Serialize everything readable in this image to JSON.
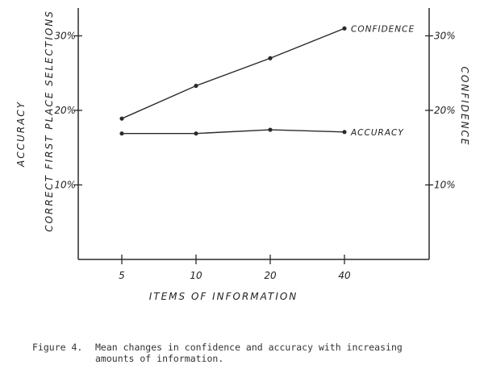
{
  "chart_data": {
    "type": "line",
    "x_categories": [
      "5",
      "10",
      "20",
      "40"
    ],
    "xlabel": "ITEMS OF INFORMATION",
    "ylabel_left_outer": "ACCURACY",
    "ylabel_left_inner": "CORRECT FIRST PLACE SELECTIONS",
    "ylabel_right": "CONFIDENCE",
    "y_ticks_left": [
      "30%",
      "20%",
      "10%"
    ],
    "y_ticks_right": [
      "30%",
      "20%",
      "10%"
    ],
    "ylim": [
      0,
      35
    ],
    "grid": false,
    "series": [
      {
        "name": "CONFIDENCE",
        "values": [
          18.9,
          23.3,
          27.0,
          31.0
        ]
      },
      {
        "name": "ACCURACY",
        "values": [
          16.9,
          16.9,
          17.4,
          17.1
        ]
      }
    ],
    "colors": {
      "line": "#2a2a2a",
      "text": "#222222"
    }
  },
  "caption": {
    "number": "Figure 4.",
    "text_line1": "Mean changes in confidence and accuracy with increasing",
    "text_line2": "amounts of information."
  }
}
